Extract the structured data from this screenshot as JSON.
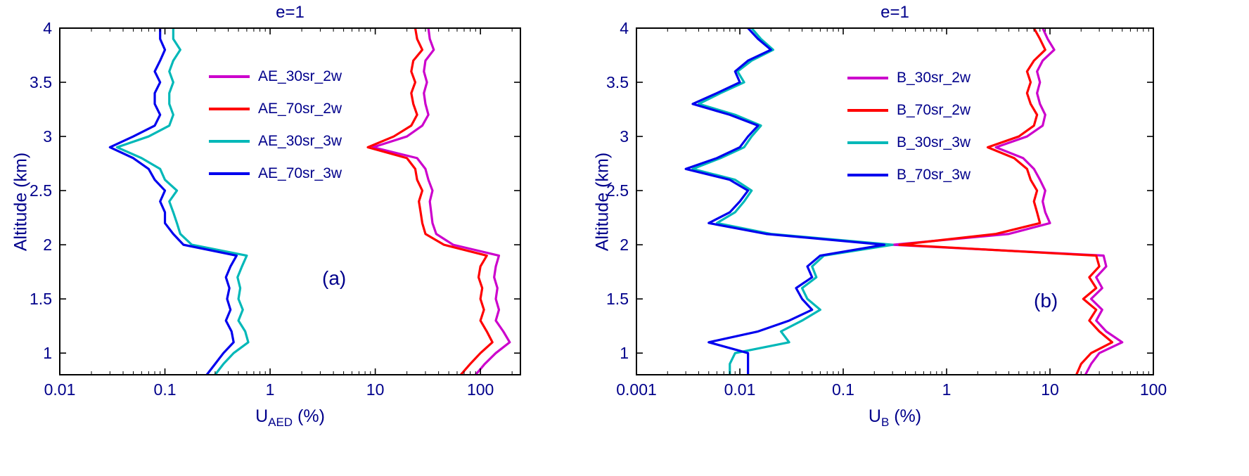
{
  "background": "#ffffff",
  "text_color": "#00008B",
  "axis_color": "#000000",
  "chart_data": [
    {
      "panel": "a",
      "type": "line",
      "title": "e=1",
      "annotation": "(a)",
      "xlabel": {
        "main": "U",
        "sub": "AED",
        "suffix": " (%)"
      },
      "ylabel": "Altitude (km)",
      "xscale": "log",
      "grid": false,
      "legend_position": "inside upper-left",
      "xlim": [
        0.01,
        240
      ],
      "ylim": [
        0.8,
        4
      ],
      "xticks": [
        0.01,
        0.1,
        1,
        10,
        100
      ],
      "xtick_labels": [
        "0.01",
        "0.1",
        "1",
        "10",
        "100"
      ],
      "yticks": [
        1,
        1.5,
        2,
        2.5,
        3,
        3.5,
        4
      ],
      "ytick_labels": [
        "1",
        "1.5",
        "2",
        "2.5",
        "3",
        "3.5",
        "4"
      ],
      "altitudes_km": [
        0.8,
        0.9,
        1.0,
        1.1,
        1.2,
        1.3,
        1.4,
        1.5,
        1.6,
        1.7,
        1.8,
        1.9,
        2.0,
        2.1,
        2.2,
        2.3,
        2.4,
        2.5,
        2.6,
        2.7,
        2.8,
        2.9,
        3.0,
        3.1,
        3.2,
        3.3,
        3.4,
        3.5,
        3.6,
        3.7,
        3.8,
        3.9,
        4.0
      ],
      "series": [
        {
          "name": "AE_30sr_2w",
          "color": "#CC00CC",
          "values": [
            90,
            110,
            140,
            190,
            165,
            140,
            150,
            140,
            145,
            135,
            140,
            150,
            55,
            38,
            35,
            34,
            33,
            35,
            32,
            30,
            25,
            9.5,
            20,
            28,
            32,
            30,
            29,
            31,
            29,
            30,
            36,
            33,
            32
          ]
        },
        {
          "name": "AE_70sr_2w",
          "color": "#FF0000",
          "values": [
            65,
            80,
            100,
            130,
            115,
            100,
            108,
            100,
            104,
            96,
            100,
            115,
            45,
            30,
            28,
            27,
            26,
            28,
            25,
            24,
            20,
            8.5,
            15,
            22,
            25,
            23,
            22,
            24,
            22,
            23,
            28,
            25,
            24
          ]
        },
        {
          "name": "AE_30sr_3w",
          "color": "#00B8B8",
          "values": [
            0.3,
            0.36,
            0.45,
            0.62,
            0.58,
            0.5,
            0.55,
            0.5,
            0.52,
            0.49,
            0.54,
            0.6,
            0.18,
            0.14,
            0.13,
            0.12,
            0.11,
            0.13,
            0.1,
            0.09,
            0.06,
            0.035,
            0.07,
            0.11,
            0.12,
            0.11,
            0.11,
            0.12,
            0.11,
            0.12,
            0.14,
            0.12,
            0.12
          ]
        },
        {
          "name": "AE_70sr_3w",
          "color": "#0000EE",
          "values": [
            0.25,
            0.3,
            0.36,
            0.45,
            0.43,
            0.38,
            0.42,
            0.39,
            0.41,
            0.38,
            0.42,
            0.48,
            0.15,
            0.12,
            0.1,
            0.1,
            0.09,
            0.1,
            0.08,
            0.07,
            0.05,
            0.03,
            0.05,
            0.08,
            0.09,
            0.08,
            0.08,
            0.09,
            0.08,
            0.09,
            0.1,
            0.09,
            0.09
          ]
        }
      ]
    },
    {
      "panel": "b",
      "type": "line",
      "title": "e=1",
      "annotation": "(b)",
      "xlabel": {
        "main": "U",
        "sub": "B",
        "suffix": " (%)"
      },
      "ylabel": "Altitude (km)",
      "xscale": "log",
      "grid": false,
      "legend_position": "inside upper-left",
      "xlim": [
        0.001,
        100
      ],
      "ylim": [
        0.8,
        4
      ],
      "xticks": [
        0.001,
        0.01,
        0.1,
        1,
        10,
        100
      ],
      "xtick_labels": [
        "0.001",
        "0.01",
        "0.1",
        "1",
        "10",
        "100"
      ],
      "yticks": [
        1,
        1.5,
        2,
        2.5,
        3,
        3.5,
        4
      ],
      "ytick_labels": [
        "1",
        "1.5",
        "2",
        "2.5",
        "3",
        "3.5",
        "4"
      ],
      "altitudes_km": [
        0.8,
        0.9,
        1.0,
        1.1,
        1.2,
        1.3,
        1.4,
        1.5,
        1.6,
        1.7,
        1.8,
        1.9,
        2.0,
        2.1,
        2.2,
        2.3,
        2.4,
        2.5,
        2.6,
        2.7,
        2.8,
        2.9,
        3.0,
        3.1,
        3.2,
        3.3,
        3.4,
        3.5,
        3.6,
        3.7,
        3.8,
        3.9,
        4.0
      ],
      "series": [
        {
          "name": "B_30sr_2w",
          "color": "#CC00CC",
          "values": [
            22,
            25,
            30,
            50,
            35,
            28,
            32,
            25,
            32,
            28,
            35,
            33,
            0.3,
            4,
            10,
            9,
            8.5,
            9,
            8,
            7,
            5.5,
            3,
            6,
            8.5,
            9,
            8,
            7.5,
            8,
            7.5,
            8.5,
            11,
            9.5,
            8.5
          ]
        },
        {
          "name": "B_70sr_2w",
          "color": "#FF0000",
          "values": [
            18,
            20,
            25,
            40,
            30,
            24,
            28,
            21,
            28,
            24,
            30,
            28,
            0.35,
            3,
            8,
            7.5,
            7,
            7.5,
            6.5,
            6,
            4.5,
            2.5,
            5,
            7,
            7.5,
            6.5,
            6,
            6.5,
            6,
            7,
            9,
            8,
            7
          ]
        },
        {
          "name": "B_30sr_3w",
          "color": "#00B8B8",
          "values": [
            0.008,
            0.008,
            0.009,
            0.03,
            0.025,
            0.04,
            0.06,
            0.045,
            0.04,
            0.055,
            0.05,
            0.065,
            0.3,
            0.02,
            0.006,
            0.009,
            0.011,
            0.013,
            0.009,
            0.0035,
            0.0065,
            0.011,
            0.013,
            0.016,
            0.009,
            0.004,
            0.0065,
            0.011,
            0.0095,
            0.013,
            0.021,
            0.016,
            0.013
          ]
        },
        {
          "name": "B_70sr_3w",
          "color": "#0000EE",
          "values": [
            0.012,
            0.012,
            0.012,
            0.005,
            0.015,
            0.03,
            0.05,
            0.04,
            0.035,
            0.05,
            0.045,
            0.06,
            0.25,
            0.018,
            0.005,
            0.008,
            0.01,
            0.012,
            0.008,
            0.003,
            0.006,
            0.01,
            0.012,
            0.015,
            0.008,
            0.0035,
            0.006,
            0.01,
            0.009,
            0.012,
            0.02,
            0.015,
            0.012
          ]
        }
      ]
    }
  ]
}
